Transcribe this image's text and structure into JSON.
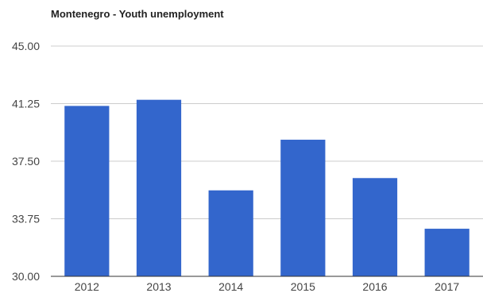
{
  "chart_data": {
    "type": "bar",
    "title": "Montenegro - Youth unemployment",
    "xlabel": "",
    "ylabel": "",
    "categories": [
      "2012",
      "2013",
      "2014",
      "2015",
      "2016",
      "2017"
    ],
    "values": [
      41.1,
      41.5,
      35.6,
      38.9,
      36.4,
      33.1
    ],
    "ylim": [
      30,
      45
    ],
    "yticks": [
      "30.00",
      "33.75",
      "37.50",
      "41.25",
      "45.00"
    ],
    "grid": true,
    "legend": "none",
    "bar_color": "#3366cc"
  }
}
